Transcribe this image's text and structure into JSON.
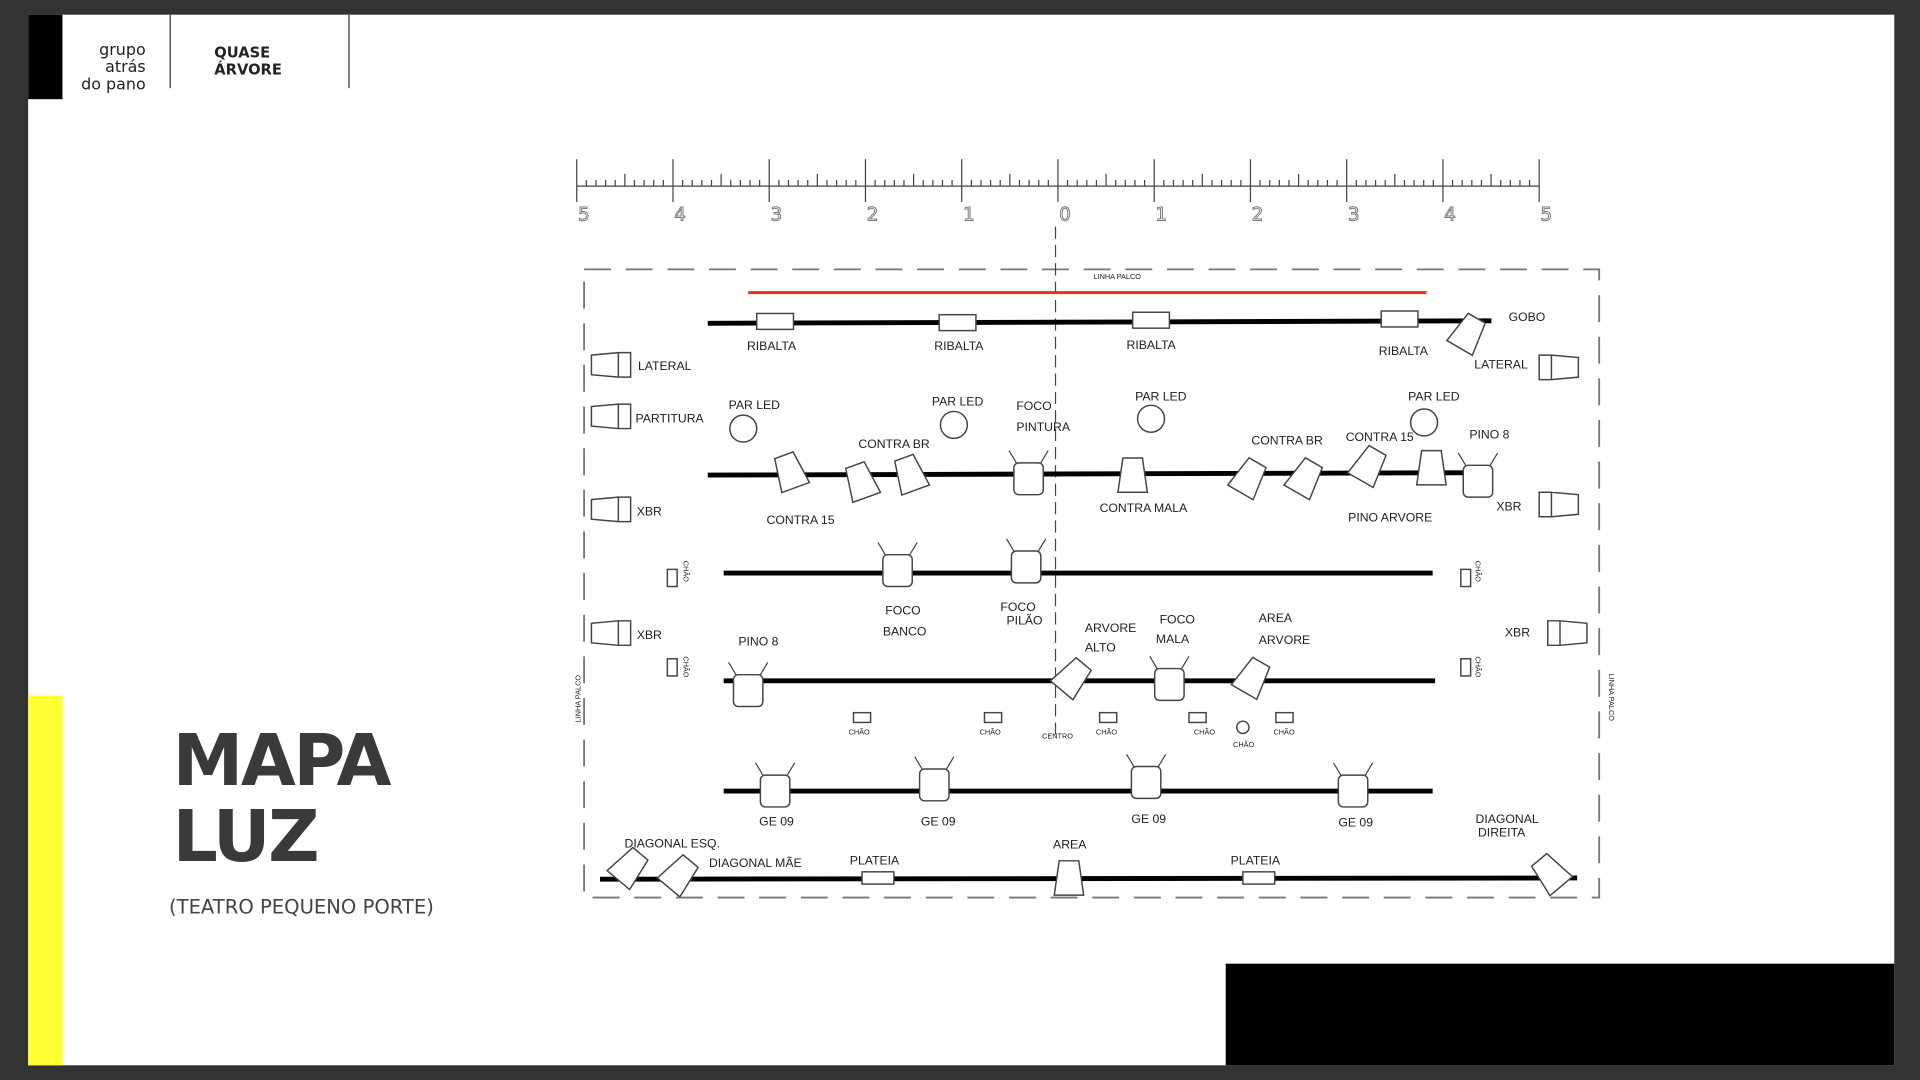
{
  "header": {
    "logo": [
      "grupo",
      "atrás",
      "do pano"
    ],
    "project": [
      "QUASE",
      "ÁRVORE"
    ]
  },
  "title": [
    "MAPA",
    "LUZ"
  ],
  "subtitle": "(TEATRO PEQUENO PORTE)",
  "diagram": {
    "ruler": [
      "5",
      "4",
      "3",
      "2",
      "1",
      "0",
      "1",
      "2",
      "3",
      "4",
      "5"
    ],
    "labels": [
      "LINHA PALCO",
      "RIBALTA",
      "RIBALTA",
      "RIBALTA",
      "RIBALTA",
      "GOBO",
      "LATERAL",
      "LATERAL",
      "PARTITURA",
      "PAR LED",
      "PAR LED",
      "PAR LED",
      "PAR LED",
      "FOCO",
      "PINTURA",
      "CONTRA BR",
      "CONTRA BR",
      "CONTRA 15",
      "PINO 8",
      "CONTRA 15",
      "CONTRA MALA",
      "PINO ARVORE",
      "XBR",
      "XBR",
      "FOCO",
      "BANCO",
      "FOCO",
      "PILÃO",
      "ARVORE",
      "ALTO",
      "FOCO",
      "MALA",
      "AREA",
      "ARVORE",
      "XBR",
      "XBR",
      "PINO 8",
      "CHÃO",
      "CHÃO",
      "CHÃO",
      "CHÃO",
      "CHÃO",
      "CHÃO",
      "CENTRO",
      "GE 09",
      "GE 09",
      "GE 09",
      "GE 09",
      "DIAGONAL",
      "DIREITA",
      "DIAGONAL ESQ.",
      "DIAGONAL MÃE",
      "AREA",
      "PLATEIA",
      "PLATEIA",
      "LINHA PALCO",
      "LINHA PALCO",
      "CHÃO",
      "CHÃO",
      "CHÃO",
      "CHÃO"
    ]
  }
}
